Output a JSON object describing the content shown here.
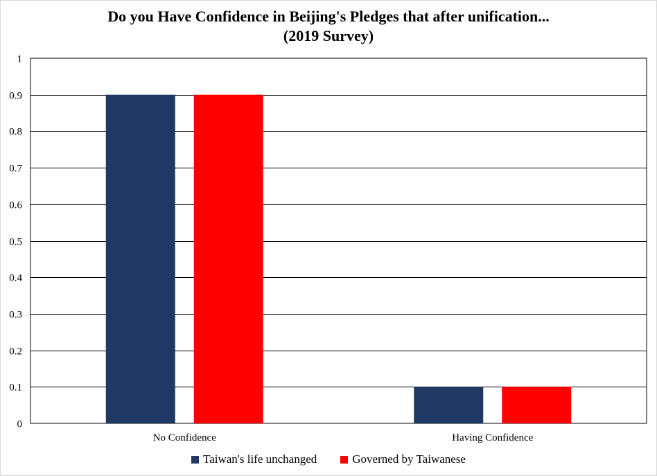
{
  "chart_data": {
    "type": "bar",
    "title_lines": [
      "Do you Have Confidence in Beijing's Pledges that after unification...",
      "(2019 Survey)"
    ],
    "categories": [
      "No Confidence",
      "Having Confidence"
    ],
    "series": [
      {
        "name": "Taiwan's life unchanged",
        "color": "#1f3864",
        "values": [
          0.9,
          0.1
        ]
      },
      {
        "name": "Governed by Taiwanese",
        "color": "#ff0000",
        "values": [
          0.9,
          0.1
        ]
      }
    ],
    "ylim": [
      0,
      1
    ],
    "yticks": [
      "0",
      "0.1",
      "0.2",
      "0.3",
      "0.4",
      "0.5",
      "0.6",
      "0.7",
      "0.8",
      "0.9",
      "1"
    ],
    "grid": true,
    "legend_position": "bottom"
  }
}
